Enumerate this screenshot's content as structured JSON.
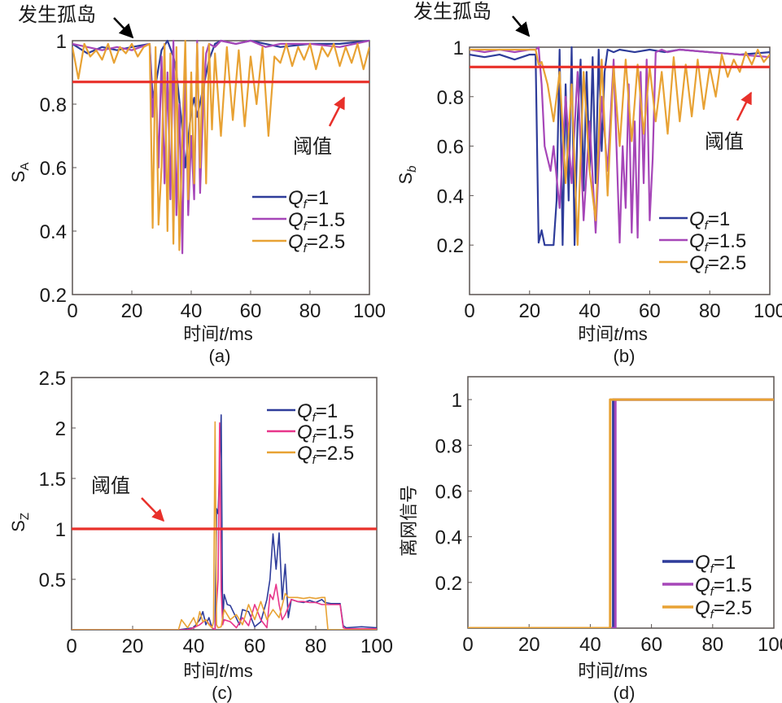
{
  "chart_data": [
    {
      "panel": "a",
      "type": "line",
      "caption": "(a)",
      "xlabel": "时间t/ms",
      "xlabel_parts": {
        "cn": "时间",
        "var": "t",
        "unit": "/ms"
      },
      "ylabel": "S_A",
      "ylabel_parts": {
        "base": "S",
        "sub": "A"
      },
      "xlim": [
        0,
        100
      ],
      "ylim": [
        0.2,
        1.0
      ],
      "xticks": [
        "0",
        "20",
        "40",
        "60",
        "80",
        "100"
      ],
      "yticks": [
        "0.2",
        "0.4",
        "0.6",
        "0.8",
        "1"
      ],
      "threshold": 0.87,
      "annotations": [
        {
          "text": "发生孤岛",
          "points_to": "t≈20 ms, y=1",
          "arrow_color": "#000000"
        },
        {
          "text": "阈值",
          "points_to": "threshold line",
          "arrow_color": "#e8302a"
        }
      ],
      "legend": {
        "position": "bottom-right",
        "entries": [
          "Qf=1",
          "Qf=1.5",
          "Qf=2.5"
        ]
      },
      "series": [
        {
          "name": "Qf=1",
          "color": "#2e3c9a",
          "x": [
            0,
            5,
            10,
            15,
            20,
            26,
            27,
            28,
            30,
            32,
            34,
            35,
            37,
            38,
            40,
            41,
            42,
            44,
            46,
            48,
            50,
            55,
            60,
            65,
            70,
            80,
            90,
            100
          ],
          "y": [
            0.99,
            0.96,
            0.98,
            0.97,
            0.98,
            0.99,
            0.82,
            0.86,
            0.97,
            1.0,
            0.95,
            0.9,
            0.72,
            0.6,
            0.78,
            0.82,
            0.76,
            0.85,
            0.94,
            0.99,
            1.0,
            0.99,
            1.0,
            0.99,
            0.98,
            0.99,
            0.99,
            1.0
          ]
        },
        {
          "name": "Qf=1.5",
          "color": "#a646b8",
          "x": [
            0,
            5,
            10,
            15,
            20,
            26,
            27,
            28,
            29,
            30,
            31,
            32,
            33,
            34,
            35,
            36,
            37,
            38,
            39,
            40,
            41,
            42,
            43,
            44,
            45,
            46,
            48,
            50,
            55,
            60,
            65,
            70,
            80,
            90,
            100
          ],
          "y": [
            0.99,
            0.98,
            0.97,
            0.98,
            0.97,
            0.99,
            0.76,
            0.9,
            0.6,
            0.95,
            0.55,
            0.9,
            0.5,
            1.0,
            0.45,
            0.8,
            0.33,
            0.95,
            0.45,
            0.7,
            0.5,
            1.0,
            0.52,
            0.8,
            0.96,
            0.99,
            0.98,
            1.0,
            0.99,
            1.0,
            0.98,
            0.99,
            0.99,
            0.98,
            1.0
          ]
        },
        {
          "name": "Qf=2.5",
          "color": "#e8a234",
          "x": [
            0,
            2,
            4,
            6,
            8,
            10,
            12,
            14,
            16,
            18,
            20,
            22,
            24,
            26,
            27,
            28,
            29,
            30,
            31,
            32,
            33,
            34,
            35,
            36,
            37,
            38,
            39,
            40,
            41,
            42,
            43,
            44,
            45,
            46,
            47,
            48,
            50,
            52,
            54,
            56,
            58,
            60,
            62,
            64,
            66,
            68,
            70,
            72,
            74,
            76,
            78,
            80,
            82,
            84,
            86,
            88,
            90,
            92,
            94,
            96,
            98,
            100
          ],
          "y": [
            0.98,
            0.88,
            0.99,
            0.95,
            0.97,
            0.94,
            0.99,
            0.93,
            0.98,
            0.96,
            0.99,
            0.95,
            0.98,
            0.99,
            0.41,
            0.98,
            0.42,
            0.6,
            0.99,
            0.4,
            0.96,
            0.36,
            0.98,
            0.34,
            0.7,
            1.0,
            0.5,
            0.9,
            0.55,
            0.99,
            0.6,
            0.98,
            0.55,
            0.99,
            0.72,
            0.96,
            0.7,
            0.98,
            0.75,
            0.97,
            0.73,
            0.95,
            0.8,
            0.98,
            0.7,
            0.95,
            0.93,
            0.99,
            0.92,
            0.98,
            0.94,
            0.99,
            0.91,
            0.98,
            0.95,
            0.99,
            0.92,
            0.98,
            0.93,
            0.99,
            0.91,
            0.98
          ]
        }
      ]
    },
    {
      "panel": "b",
      "type": "line",
      "caption": "(b)",
      "xlabel": "时间t/ms",
      "xlabel_parts": {
        "cn": "时间",
        "var": "t",
        "unit": "/ms"
      },
      "ylabel": "S_b",
      "ylabel_parts": {
        "base": "S",
        "sub": "b"
      },
      "xlim": [
        0,
        100
      ],
      "ylim": [
        0.0,
        1.0
      ],
      "xticks": [
        "0",
        "20",
        "40",
        "60",
        "80",
        "100"
      ],
      "yticks": [
        "0.2",
        "0.4",
        "0.6",
        "0.8",
        "1"
      ],
      "threshold": 0.92,
      "annotations": [
        {
          "text": "发生孤岛",
          "points_to": "t≈22 ms, y=1",
          "arrow_color": "#000000"
        },
        {
          "text": "阈值",
          "points_to": "threshold line",
          "arrow_color": "#e8302a"
        }
      ],
      "legend": {
        "position": "bottom-right",
        "entries": [
          "Qf=1",
          "Qf=1.5",
          "Qf=2.5"
        ]
      },
      "series": [
        {
          "name": "Qf=1",
          "color": "#2e3c9a",
          "x": [
            0,
            5,
            10,
            15,
            20,
            22,
            23,
            24,
            25,
            26,
            28,
            29,
            30,
            31,
            32,
            33,
            34,
            35,
            36,
            37,
            38,
            39,
            40,
            41,
            42,
            43,
            44,
            45,
            46,
            48,
            50,
            55,
            60,
            65,
            70,
            80,
            90,
            100
          ],
          "y": [
            0.97,
            0.96,
            0.97,
            0.95,
            0.97,
            0.97,
            0.21,
            0.26,
            0.2,
            0.2,
            0.2,
            0.38,
            0.99,
            0.2,
            0.85,
            0.38,
            1.0,
            0.2,
            0.7,
            0.95,
            0.42,
            0.9,
            0.5,
            0.96,
            0.45,
            0.99,
            0.58,
            0.9,
            0.99,
            0.98,
            0.99,
            0.98,
            0.99,
            0.98,
            0.99,
            0.98,
            0.97,
            0.98
          ]
        },
        {
          "name": "Qf=1.5",
          "color": "#a646b8",
          "x": [
            0,
            5,
            10,
            15,
            20,
            22,
            23,
            24,
            25,
            26,
            27,
            28,
            30,
            32,
            34,
            36,
            38,
            40,
            42,
            44,
            46,
            48,
            50,
            51,
            52,
            53,
            54,
            55,
            56,
            57,
            58,
            59,
            60,
            61,
            62,
            64,
            66,
            70,
            80,
            90,
            100
          ],
          "y": [
            0.99,
            0.98,
            0.99,
            0.98,
            0.99,
            0.99,
            1.0,
            0.85,
            0.6,
            0.55,
            0.5,
            0.6,
            0.35,
            0.8,
            0.45,
            0.9,
            0.3,
            0.7,
            0.25,
            0.8,
            0.5,
            0.95,
            0.21,
            0.6,
            0.35,
            0.85,
            0.25,
            0.7,
            0.23,
            0.9,
            0.45,
            0.95,
            0.3,
            0.55,
            0.98,
            0.99,
            0.98,
            0.99,
            0.98,
            0.97,
            0.96
          ]
        },
        {
          "name": "Qf=2.5",
          "color": "#e8a234",
          "x": [
            0,
            5,
            10,
            15,
            20,
            22,
            23,
            24,
            26,
            28,
            30,
            32,
            34,
            36,
            38,
            40,
            42,
            44,
            46,
            48,
            50,
            52,
            54,
            56,
            58,
            60,
            62,
            64,
            66,
            68,
            70,
            72,
            74,
            76,
            78,
            80,
            82,
            84,
            86,
            88,
            90,
            92,
            94,
            96,
            98,
            100
          ],
          "y": [
            0.99,
            0.99,
            0.99,
            0.99,
            0.99,
            0.99,
            0.93,
            0.94,
            0.85,
            0.7,
            0.9,
            0.45,
            0.85,
            0.2,
            0.9,
            0.5,
            0.3,
            0.95,
            0.4,
            0.92,
            0.6,
            0.95,
            0.62,
            0.93,
            0.65,
            0.92,
            0.7,
            0.9,
            0.65,
            0.96,
            0.7,
            0.93,
            0.72,
            0.95,
            0.75,
            0.92,
            0.8,
            0.97,
            0.88,
            0.95,
            0.9,
            0.98,
            0.93,
            0.99,
            0.94,
            0.97
          ]
        }
      ]
    },
    {
      "panel": "c",
      "type": "line",
      "caption": "(c)",
      "xlabel": "时间t/ms",
      "xlabel_parts": {
        "cn": "时间",
        "var": "t",
        "unit": "/ms"
      },
      "ylabel": "S_Z",
      "ylabel_parts": {
        "base": "S",
        "sub": "Z"
      },
      "xlim": [
        0,
        100
      ],
      "ylim": [
        0,
        2.5
      ],
      "xticks": [
        "0",
        "20",
        "40",
        "60",
        "80",
        "100"
      ],
      "yticks": [
        "0.5",
        "1",
        "1.5",
        "2",
        "2.5"
      ],
      "threshold": 1.0,
      "annotations": [
        {
          "text": "阈值",
          "points_to": "threshold line",
          "arrow_color": "#e8302a"
        }
      ],
      "legend": {
        "position": "top-right",
        "entries": [
          "Qf=1",
          "Qf=1.5",
          "Qf=2.5"
        ]
      },
      "series": [
        {
          "name": "Qf=1",
          "color": "#2e3c9a",
          "x": [
            0,
            35,
            40,
            42,
            43,
            44,
            45,
            46,
            47,
            47.5,
            48,
            48.5,
            49,
            49.5,
            50,
            51,
            52,
            55,
            56,
            58,
            60,
            62,
            64,
            65,
            66,
            67,
            68,
            69,
            70,
            71,
            72,
            74,
            76,
            78,
            80,
            82,
            83,
            85,
            88,
            89,
            90,
            95,
            100
          ],
          "y": [
            0,
            0,
            0.02,
            0.1,
            0.18,
            0.05,
            0.12,
            0.02,
            0,
            1.2,
            1.15,
            1.6,
            2.13,
            0.05,
            0.35,
            0.25,
            0.24,
            0.05,
            0.2,
            0.18,
            0.03,
            0.08,
            0.3,
            0.5,
            0.95,
            0.6,
            0.96,
            0.3,
            0.65,
            0.12,
            0.3,
            0.28,
            0.27,
            0.29,
            0.27,
            0.3,
            0.27,
            0.26,
            0.26,
            0.04,
            0.02,
            0.03,
            0.02
          ]
        },
        {
          "name": "Qf=1.5",
          "color": "#e8358a",
          "x": [
            0,
            38,
            40,
            42,
            44,
            46,
            47,
            48,
            48.5,
            49,
            49.5,
            50,
            52,
            54,
            56,
            58,
            60,
            62,
            64,
            65,
            66,
            67,
            68,
            69,
            70,
            72,
            74,
            76,
            78,
            80,
            82,
            84,
            86,
            88,
            89,
            90,
            100
          ],
          "y": [
            0,
            0,
            0.02,
            0.05,
            0.1,
            0.02,
            0,
            0.5,
            2.05,
            0.4,
            0.05,
            0.1,
            0.08,
            0.02,
            0.12,
            0.04,
            0.25,
            0.1,
            0.02,
            0.35,
            0.3,
            0.45,
            0.25,
            0.1,
            0.15,
            0.3,
            0.28,
            0.28,
            0.27,
            0.27,
            0.25,
            0.25,
            0.25,
            0.25,
            0.02,
            0.01,
            0.01
          ]
        },
        {
          "name": "Qf=2.5",
          "color": "#e8a234",
          "x": [
            0,
            35,
            36,
            38,
            40,
            41,
            42,
            43,
            44,
            45,
            46,
            46.5,
            47,
            47.5,
            48,
            49,
            50,
            52,
            54,
            56,
            58,
            60,
            62,
            64,
            66,
            68,
            70,
            71,
            72,
            74,
            76,
            78,
            80,
            82,
            83,
            84,
            90,
            100
          ],
          "y": [
            0,
            0,
            0.1,
            0.02,
            0.12,
            0.04,
            0.18,
            0.08,
            0.1,
            0.05,
            0.02,
            0.08,
            2.06,
            0.05,
            0.02,
            0.03,
            0.2,
            0.1,
            0.15,
            0.05,
            0.25,
            0.1,
            0.28,
            0.1,
            0.2,
            0.12,
            0.36,
            0.32,
            0.32,
            0.32,
            0.31,
            0.32,
            0.31,
            0.32,
            0.32,
            0.0,
            0.0,
            0.0
          ]
        }
      ]
    },
    {
      "panel": "d",
      "type": "line",
      "caption": "(d)",
      "xlabel": "时间t/ms",
      "xlabel_parts": {
        "cn": "时间",
        "var": "t",
        "unit": "/ms"
      },
      "ylabel": "离网信号",
      "xlim": [
        0,
        100
      ],
      "ylim": [
        0,
        1.1
      ],
      "xticks": [
        "0",
        "20",
        "40",
        "60",
        "80",
        "100"
      ],
      "yticks": [
        "0.2",
        "0.4",
        "0.6",
        "0.8",
        "1"
      ],
      "legend": {
        "position": "bottom-right",
        "entries": [
          "Qf=1",
          "Qf=1.5",
          "Qf=2.5"
        ]
      },
      "series": [
        {
          "name": "Qf=1",
          "color": "#2e3c9a",
          "x": [
            0,
            47.5,
            47.5,
            100
          ],
          "y": [
            0,
            0,
            1,
            1
          ]
        },
        {
          "name": "Qf=1.5",
          "color": "#a646b8",
          "x": [
            0,
            48.2,
            48.2,
            100
          ],
          "y": [
            0,
            0,
            1,
            1
          ]
        },
        {
          "name": "Qf=2.5",
          "color": "#e8a234",
          "x": [
            0,
            46.5,
            46.5,
            100
          ],
          "y": [
            0,
            0,
            1,
            1
          ]
        }
      ]
    }
  ]
}
